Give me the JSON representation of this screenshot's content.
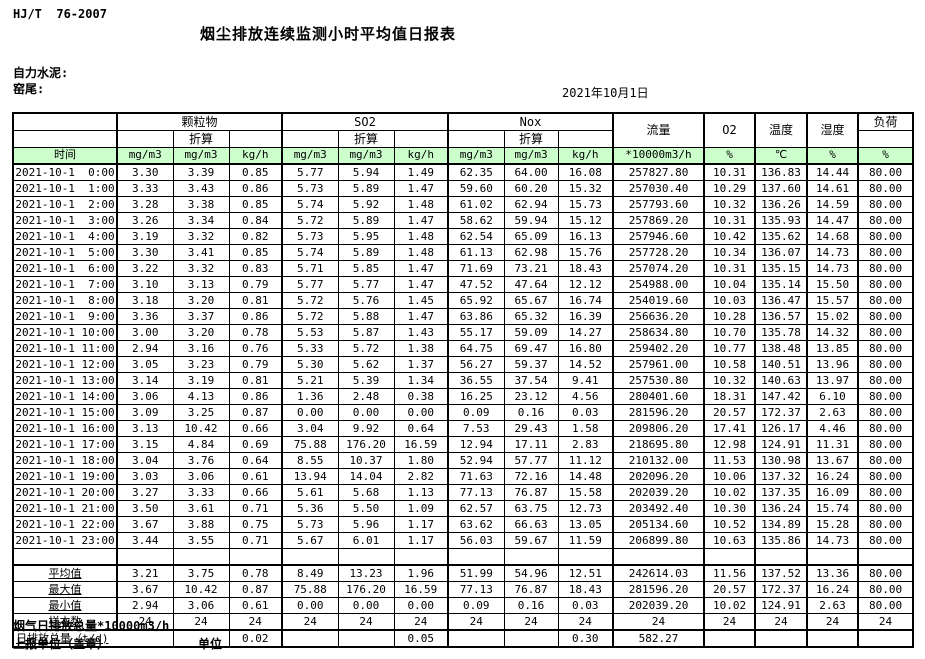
{
  "page": {
    "background": "#ffffff",
    "header_green": "#ccffcc",
    "border_color": "#000000"
  },
  "header": {
    "standard_code": "HJ/T  76-2007",
    "title": "烟尘排放连续监测小时平均值日报表",
    "company": "自力水泥:",
    "site": "窑尾:",
    "date": "2021年10月1日"
  },
  "table": {
    "group_row": {
      "particulate": "颗粒物",
      "so2": "SO2",
      "nox": "Nox",
      "flow": "流量",
      "o2": "O2",
      "temperature": "温度",
      "humidity": "湿度",
      "load": "负荷"
    },
    "converted_label": "折算",
    "unit_row": {
      "time": "时间",
      "mgm3": "mg/m3",
      "kgh": "kg/h",
      "flow": "*10000m3/h",
      "percent": "%",
      "celsius": "℃"
    },
    "rows": [
      [
        "2021-10-1  0:00",
        "3.30",
        "3.39",
        "0.85",
        "5.77",
        "5.94",
        "1.49",
        "62.35",
        "64.00",
        "16.08",
        "257827.80",
        "10.31",
        "136.83",
        "14.44",
        "80.00"
      ],
      [
        "2021-10-1  1:00",
        "3.33",
        "3.43",
        "0.86",
        "5.73",
        "5.89",
        "1.47",
        "59.60",
        "60.20",
        "15.32",
        "257030.40",
        "10.29",
        "137.60",
        "14.61",
        "80.00"
      ],
      [
        "2021-10-1  2:00",
        "3.28",
        "3.38",
        "0.85",
        "5.74",
        "5.92",
        "1.48",
        "61.02",
        "62.94",
        "15.73",
        "257793.60",
        "10.32",
        "136.26",
        "14.59",
        "80.00"
      ],
      [
        "2021-10-1  3:00",
        "3.26",
        "3.34",
        "0.84",
        "5.72",
        "5.89",
        "1.47",
        "58.62",
        "59.94",
        "15.12",
        "257869.20",
        "10.31",
        "135.93",
        "14.47",
        "80.00"
      ],
      [
        "2021-10-1  4:00",
        "3.19",
        "3.32",
        "0.82",
        "5.73",
        "5.95",
        "1.48",
        "62.54",
        "65.09",
        "16.13",
        "257946.60",
        "10.42",
        "135.62",
        "14.68",
        "80.00"
      ],
      [
        "2021-10-1  5:00",
        "3.30",
        "3.41",
        "0.85",
        "5.74",
        "5.89",
        "1.48",
        "61.13",
        "62.98",
        "15.76",
        "257728.20",
        "10.34",
        "136.07",
        "14.73",
        "80.00"
      ],
      [
        "2021-10-1  6:00",
        "3.22",
        "3.32",
        "0.83",
        "5.71",
        "5.85",
        "1.47",
        "71.69",
        "73.21",
        "18.43",
        "257074.20",
        "10.31",
        "135.15",
        "14.73",
        "80.00"
      ],
      [
        "2021-10-1  7:00",
        "3.10",
        "3.13",
        "0.79",
        "5.77",
        "5.77",
        "1.47",
        "47.52",
        "47.64",
        "12.12",
        "254988.00",
        "10.04",
        "135.14",
        "15.50",
        "80.00"
      ],
      [
        "2021-10-1  8:00",
        "3.18",
        "3.20",
        "0.81",
        "5.72",
        "5.76",
        "1.45",
        "65.92",
        "65.67",
        "16.74",
        "254019.60",
        "10.03",
        "136.47",
        "15.57",
        "80.00"
      ],
      [
        "2021-10-1  9:00",
        "3.36",
        "3.37",
        "0.86",
        "5.72",
        "5.88",
        "1.47",
        "63.86",
        "65.32",
        "16.39",
        "256636.20",
        "10.28",
        "136.57",
        "15.02",
        "80.00"
      ],
      [
        "2021-10-1 10:00",
        "3.00",
        "3.20",
        "0.78",
        "5.53",
        "5.87",
        "1.43",
        "55.17",
        "59.09",
        "14.27",
        "258634.80",
        "10.70",
        "135.78",
        "14.32",
        "80.00"
      ],
      [
        "2021-10-1 11:00",
        "2.94",
        "3.16",
        "0.76",
        "5.33",
        "5.72",
        "1.38",
        "64.75",
        "69.47",
        "16.80",
        "259402.20",
        "10.77",
        "138.48",
        "13.85",
        "80.00"
      ],
      [
        "2021-10-1 12:00",
        "3.05",
        "3.23",
        "0.79",
        "5.30",
        "5.62",
        "1.37",
        "56.27",
        "59.37",
        "14.52",
        "257961.00",
        "10.58",
        "140.51",
        "13.96",
        "80.00"
      ],
      [
        "2021-10-1 13:00",
        "3.14",
        "3.19",
        "0.81",
        "5.21",
        "5.39",
        "1.34",
        "36.55",
        "37.54",
        "9.41",
        "257530.80",
        "10.32",
        "140.63",
        "13.97",
        "80.00"
      ],
      [
        "2021-10-1 14:00",
        "3.06",
        "4.13",
        "0.86",
        "1.36",
        "2.48",
        "0.38",
        "16.25",
        "23.12",
        "4.56",
        "280401.60",
        "18.31",
        "147.42",
        "6.10",
        "80.00"
      ],
      [
        "2021-10-1 15:00",
        "3.09",
        "3.25",
        "0.87",
        "0.00",
        "0.00",
        "0.00",
        "0.09",
        "0.16",
        "0.03",
        "281596.20",
        "20.57",
        "172.37",
        "2.63",
        "80.00"
      ],
      [
        "2021-10-1 16:00",
        "3.13",
        "10.42",
        "0.66",
        "3.04",
        "9.92",
        "0.64",
        "7.53",
        "29.43",
        "1.58",
        "209806.20",
        "17.41",
        "126.17",
        "4.46",
        "80.00"
      ],
      [
        "2021-10-1 17:00",
        "3.15",
        "4.84",
        "0.69",
        "75.88",
        "176.20",
        "16.59",
        "12.94",
        "17.11",
        "2.83",
        "218695.80",
        "12.98",
        "124.91",
        "11.31",
        "80.00"
      ],
      [
        "2021-10-1 18:00",
        "3.04",
        "3.76",
        "0.64",
        "8.55",
        "10.37",
        "1.80",
        "52.94",
        "57.77",
        "11.12",
        "210132.00",
        "11.53",
        "130.98",
        "13.67",
        "80.00"
      ],
      [
        "2021-10-1 19:00",
        "3.03",
        "3.06",
        "0.61",
        "13.94",
        "14.04",
        "2.82",
        "71.63",
        "72.16",
        "14.48",
        "202096.20",
        "10.06",
        "137.32",
        "16.24",
        "80.00"
      ],
      [
        "2021-10-1 20:00",
        "3.27",
        "3.33",
        "0.66",
        "5.61",
        "5.68",
        "1.13",
        "77.13",
        "76.87",
        "15.58",
        "202039.20",
        "10.02",
        "137.35",
        "16.09",
        "80.00"
      ],
      [
        "2021-10-1 21:00",
        "3.50",
        "3.61",
        "0.71",
        "5.36",
        "5.50",
        "1.09",
        "62.57",
        "63.75",
        "12.73",
        "203492.40",
        "10.30",
        "136.24",
        "15.74",
        "80.00"
      ],
      [
        "2021-10-1 22:00",
        "3.67",
        "3.88",
        "0.75",
        "5.73",
        "5.96",
        "1.17",
        "63.62",
        "66.63",
        "13.05",
        "205134.60",
        "10.52",
        "134.89",
        "15.28",
        "80.00"
      ],
      [
        "2021-10-1 23:00",
        "3.44",
        "3.55",
        "0.71",
        "5.67",
        "6.01",
        "1.17",
        "56.03",
        "59.67",
        "11.59",
        "206899.80",
        "10.63",
        "135.86",
        "14.73",
        "80.00"
      ]
    ],
    "summary_rows": [
      [
        "平均值",
        "3.21",
        "3.75",
        "0.78",
        "8.49",
        "13.23",
        "1.96",
        "51.99",
        "54.96",
        "12.51",
        "242614.03",
        "11.56",
        "137.52",
        "13.36",
        "80.00"
      ],
      [
        "最大值",
        "3.67",
        "10.42",
        "0.87",
        "75.88",
        "176.20",
        "16.59",
        "77.13",
        "76.87",
        "18.43",
        "281596.20",
        "20.57",
        "172.37",
        "16.24",
        "80.00"
      ],
      [
        "最小值",
        "2.94",
        "3.06",
        "0.61",
        "0.00",
        "0.00",
        "0.00",
        "0.09",
        "0.16",
        "0.03",
        "202039.20",
        "10.02",
        "124.91",
        "2.63",
        "80.00"
      ],
      [
        "样本数",
        "24",
        "24",
        "24",
        "24",
        "24",
        "24",
        "24",
        "24",
        "24",
        "24",
        "24",
        "24",
        "24",
        "24"
      ]
    ],
    "daily_total": {
      "label": "日排放总量（t/d)",
      "values": [
        "",
        "0.02",
        "",
        "",
        "0.05",
        "",
        "",
        "0.30",
        "582.27",
        "",
        "",
        "",
        "",
        ""
      ]
    }
  },
  "footer": {
    "flow_total_note": "烟气日排放总量*10000m3/h",
    "report_unit": "上报单位（盖章）",
    "unit_label": "单位"
  }
}
